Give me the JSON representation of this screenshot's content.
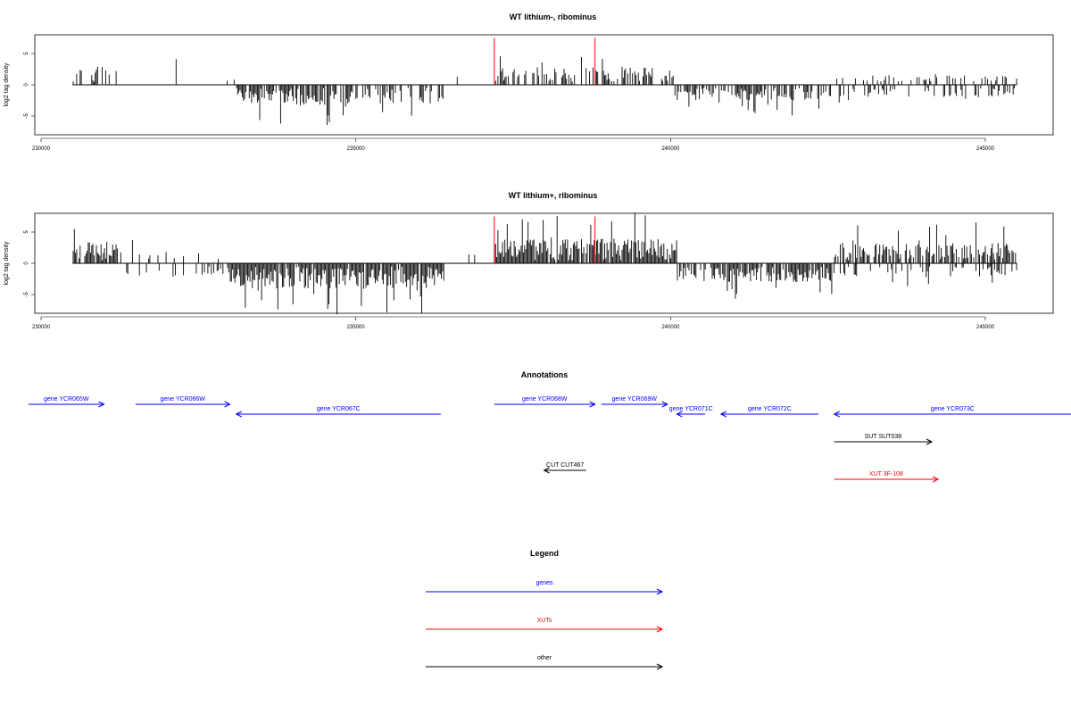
{
  "chart_data": [
    {
      "type": "bar",
      "title": "WT lithium-, ribominus",
      "ylabel": "log2 tag density",
      "xlabel": "",
      "xlim": [
        230000,
        246000
      ],
      "ylim": [
        -8,
        8
      ],
      "x_ticks": [
        230000,
        235000,
        240000,
        245000
      ],
      "y_ticks": [
        -5,
        0,
        5
      ],
      "x_range": [
        230500,
        245500
      ],
      "color": "#000000",
      "segments": [
        {
          "from": 230500,
          "to": 231200,
          "sign": 1,
          "amp": 2.5,
          "density": 0.35
        },
        {
          "from": 231200,
          "to": 232300,
          "sign": 1,
          "amp": 2.5,
          "density": 0.08
        },
        {
          "from": 232300,
          "to": 233100,
          "sign": 1,
          "amp": 1.5,
          "density": 0.05
        },
        {
          "from": 233100,
          "to": 234700,
          "sign": -1,
          "amp": 2.8,
          "density": 0.8
        },
        {
          "from": 234700,
          "to": 236400,
          "sign": -1,
          "amp": 2.5,
          "density": 0.6
        },
        {
          "from": 236400,
          "to": 237200,
          "sign": 1,
          "amp": 1.0,
          "density": 0.06
        },
        {
          "from": 237200,
          "to": 240050,
          "sign": 1,
          "amp": 2.3,
          "density": 0.55
        },
        {
          "from": 240050,
          "to": 242600,
          "sign": -1,
          "amp": 2.0,
          "density": 0.55
        },
        {
          "from": 242600,
          "to": 245500,
          "sign": 1,
          "amp": 1.0,
          "density": 0.25
        },
        {
          "from": 242600,
          "to": 245500,
          "sign": -1,
          "amp": 1.4,
          "density": 0.3
        }
      ],
      "markers": [
        {
          "x": 237200,
          "value": 7.5,
          "color": "#ff0000"
        },
        {
          "x": 238800,
          "value": 7.5,
          "color": "#ff0000"
        }
      ]
    },
    {
      "type": "bar",
      "title": "WT lithium+, ribominus",
      "ylabel": "log2 tag density",
      "xlabel": "",
      "xlim": [
        230000,
        246000
      ],
      "ylim": [
        -8,
        8
      ],
      "x_ticks": [
        230000,
        235000,
        240000,
        245000
      ],
      "y_ticks": [
        -5,
        0,
        5
      ],
      "x_range": [
        230500,
        245500
      ],
      "color": "#000000",
      "segments": [
        {
          "from": 230500,
          "to": 231300,
          "sign": 1,
          "amp": 3.0,
          "density": 0.85
        },
        {
          "from": 231300,
          "to": 233000,
          "sign": 1,
          "amp": 1.5,
          "density": 0.15
        },
        {
          "from": 231300,
          "to": 233000,
          "sign": -1,
          "amp": 1.5,
          "density": 0.12
        },
        {
          "from": 233000,
          "to": 236400,
          "sign": -1,
          "amp": 3.5,
          "density": 0.95
        },
        {
          "from": 236400,
          "to": 237200,
          "sign": 1,
          "amp": 1.0,
          "density": 0.06
        },
        {
          "from": 237200,
          "to": 240100,
          "sign": 1,
          "amp": 3.5,
          "density": 0.95
        },
        {
          "from": 240100,
          "to": 242600,
          "sign": -1,
          "amp": 2.5,
          "density": 0.75
        },
        {
          "from": 242600,
          "to": 245500,
          "sign": 1,
          "amp": 2.8,
          "density": 0.75
        },
        {
          "from": 242600,
          "to": 245500,
          "sign": -1,
          "amp": 1.6,
          "density": 0.3
        }
      ],
      "markers": [
        {
          "x": 237200,
          "value": 7.5,
          "color": "#ff0000"
        },
        {
          "x": 238800,
          "value": 7.5,
          "color": "#ff0000"
        }
      ]
    }
  ],
  "annotations": {
    "title": "Annotations",
    "colors": {
      "genes": "#0000ff",
      "XUTs": "#ff0000",
      "other": "#000000"
    },
    "features": [
      {
        "label": "gene YCR065W",
        "start": 229800,
        "end": 231000,
        "strand": "+",
        "row": 0,
        "kind": "genes"
      },
      {
        "label": "gene YCR066W",
        "start": 231500,
        "end": 233000,
        "strand": "+",
        "row": 0,
        "kind": "genes"
      },
      {
        "label": "gene YCR067C",
        "start": 233100,
        "end": 236350,
        "strand": "-",
        "row": 1,
        "kind": "genes"
      },
      {
        "label": "gene YCR068W",
        "start": 237200,
        "end": 238800,
        "strand": "+",
        "row": 0,
        "kind": "genes"
      },
      {
        "label": "gene YCR069W",
        "start": 238900,
        "end": 239950,
        "strand": "+",
        "row": 0,
        "kind": "genes"
      },
      {
        "label": "gene YCR071C",
        "start": 240100,
        "end": 240550,
        "strand": "-",
        "row": 1,
        "kind": "genes"
      },
      {
        "label": "gene YCR072C",
        "start": 240800,
        "end": 242350,
        "strand": "-",
        "row": 1,
        "kind": "genes"
      },
      {
        "label": "gene YCR073C",
        "start": 242600,
        "end": 246400,
        "strand": "-",
        "row": 1,
        "kind": "genes"
      },
      {
        "label": "SUT SUT038",
        "start": 242600,
        "end": 244150,
        "strand": "+",
        "row": 2,
        "kind": "other"
      },
      {
        "label": "CUT CUT467",
        "start": 237990,
        "end": 238660,
        "strand": "-",
        "row": 3,
        "kind": "other"
      },
      {
        "label": "XUT 3F-108",
        "start": 242600,
        "end": 244250,
        "strand": "+",
        "row": 4,
        "kind": "XUTs"
      }
    ]
  },
  "legend": {
    "title": "Legend",
    "items": [
      {
        "label": "genes",
        "color": "#0000ff"
      },
      {
        "label": "XUTs",
        "color": "#ff0000"
      },
      {
        "label": "other",
        "color": "#000000"
      }
    ]
  }
}
